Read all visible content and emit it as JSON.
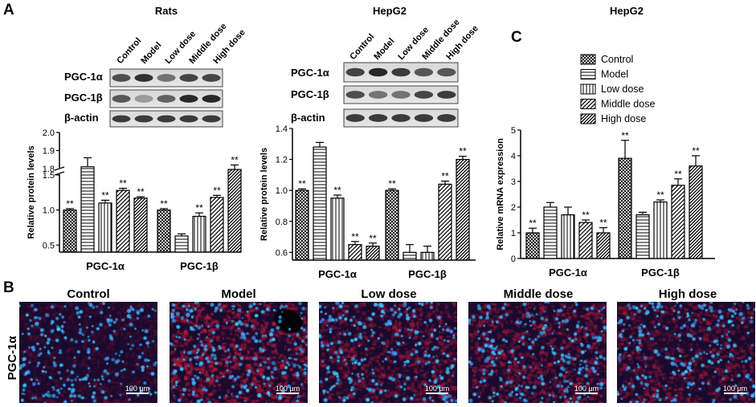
{
  "panel_labels": [
    "A",
    "B",
    "C"
  ],
  "panel_titles": {
    "rats": "Rats",
    "hepg2_western": "HepG2",
    "hepg2_mrna": "HepG2"
  },
  "groups": [
    "Control",
    "Model",
    "Low dose",
    "Middle dose",
    "High dose"
  ],
  "blot_proteins": {
    "rats": [
      "PGC-1α",
      "PGC-1β",
      "β-actin"
    ],
    "hepg2": [
      "PGC-1α",
      "PGC-1β",
      "β-actin"
    ]
  },
  "significance_mark": "**",
  "colors": {
    "bar_stroke": "#000000",
    "bar_fill": "#ffffff",
    "micro_background": "#1a0a2e",
    "nuclei": "#3aa0ff",
    "stain": "#c0203a"
  },
  "microscopy": {
    "row_label": "PGC-1α",
    "scale_bar": "100 μm",
    "titles": [
      "Control",
      "Model",
      "Low dose",
      "Middle dose",
      "High dose"
    ]
  },
  "chart_data": [
    {
      "type": "bar",
      "panel": "A",
      "title": "Rats",
      "ylabel": "Relative protein levels",
      "categories": [
        "PGC-1α",
        "PGC-1β"
      ],
      "axis_break": [
        1.5,
        1.8
      ],
      "ylim": [
        0.4,
        2.0
      ],
      "yticks": [
        0.5,
        1.0,
        1.5,
        1.8,
        1.9,
        2.0
      ],
      "ytick_labels": [
        "0.5",
        "1.0",
        "1.5",
        "1.8",
        "1.9",
        "2.0"
      ],
      "series": [
        {
          "name": "Control",
          "pattern": "crosshatch",
          "values": [
            1.0,
            1.0
          ],
          "errors": [
            0.02,
            0.02
          ],
          "sig": [
            "**",
            "**"
          ]
        },
        {
          "name": "Model",
          "pattern": "hstripe",
          "values": [
            1.81,
            0.63
          ],
          "errors": [
            0.05,
            0.03
          ],
          "sig": [
            "",
            ""
          ]
        },
        {
          "name": "Low dose",
          "pattern": "vstripe",
          "values": [
            1.1,
            0.91
          ],
          "errors": [
            0.04,
            0.05
          ],
          "sig": [
            "**",
            "**"
          ]
        },
        {
          "name": "Middle dose",
          "pattern": "diag",
          "values": [
            1.28,
            1.18
          ],
          "errors": [
            0.03,
            0.03
          ],
          "sig": [
            "**",
            "**"
          ]
        },
        {
          "name": "High dose",
          "pattern": "diagdense",
          "values": [
            1.17,
            1.76
          ],
          "errors": [
            0.02,
            0.06
          ],
          "sig": [
            "**",
            "**"
          ]
        }
      ]
    },
    {
      "type": "bar",
      "panel": "A",
      "title": "HepG2",
      "ylabel": "Relative protein levels",
      "categories": [
        "PGC-1α",
        "PGC-1β"
      ],
      "ylim": [
        0.55,
        1.4
      ],
      "yticks": [
        0.6,
        0.8,
        1.0,
        1.2,
        1.4
      ],
      "ytick_labels": [
        "0.6",
        "0.8",
        "1.0",
        "1.2",
        "1.4"
      ],
      "series": [
        {
          "name": "Control",
          "pattern": "crosshatch",
          "values": [
            1.0,
            1.0
          ],
          "errors": [
            0.01,
            0.01
          ],
          "sig": [
            "**",
            "**"
          ]
        },
        {
          "name": "Model",
          "pattern": "hstripe",
          "values": [
            1.28,
            0.6
          ],
          "errors": [
            0.03,
            0.05
          ],
          "sig": [
            "",
            ""
          ]
        },
        {
          "name": "Low dose",
          "pattern": "vstripe",
          "values": [
            0.95,
            0.6
          ],
          "errors": [
            0.02,
            0.04
          ],
          "sig": [
            "**",
            ""
          ]
        },
        {
          "name": "Middle dose",
          "pattern": "diag",
          "values": [
            0.65,
            1.04
          ],
          "errors": [
            0.02,
            0.02
          ],
          "sig": [
            "**",
            "**"
          ]
        },
        {
          "name": "High dose",
          "pattern": "diagdense",
          "values": [
            0.64,
            1.2
          ],
          "errors": [
            0.02,
            0.02
          ],
          "sig": [
            "**",
            "**"
          ]
        }
      ]
    },
    {
      "type": "bar",
      "panel": "C",
      "title": "HepG2",
      "ylabel": "Relative mRNA expression",
      "categories": [
        "PGC-1α",
        "PGC-1β"
      ],
      "ylim": [
        0,
        5
      ],
      "yticks": [
        0,
        1,
        2,
        3,
        4,
        5
      ],
      "ytick_labels": [
        "0",
        "1",
        "2",
        "3",
        "4",
        "5"
      ],
      "legend_position": "top",
      "series": [
        {
          "name": "Control",
          "pattern": "crosshatch",
          "values": [
            1.0,
            3.9
          ],
          "errors": [
            0.18,
            0.7
          ],
          "sig": [
            "**",
            "**"
          ]
        },
        {
          "name": "Model",
          "pattern": "hstripe",
          "values": [
            2.0,
            1.7
          ],
          "errors": [
            0.18,
            0.1
          ],
          "sig": [
            "",
            ""
          ]
        },
        {
          "name": "Low dose",
          "pattern": "vstripe",
          "values": [
            1.7,
            2.2
          ],
          "errors": [
            0.3,
            0.08
          ],
          "sig": [
            "",
            "**"
          ]
        },
        {
          "name": "Middle dose",
          "pattern": "diag",
          "values": [
            1.4,
            2.85
          ],
          "errors": [
            0.1,
            0.25
          ],
          "sig": [
            "**",
            "**"
          ]
        },
        {
          "name": "High dose",
          "pattern": "diagdense",
          "values": [
            1.0,
            3.6
          ],
          "errors": [
            0.2,
            0.4
          ],
          "sig": [
            "**",
            "**"
          ]
        }
      ]
    }
  ]
}
